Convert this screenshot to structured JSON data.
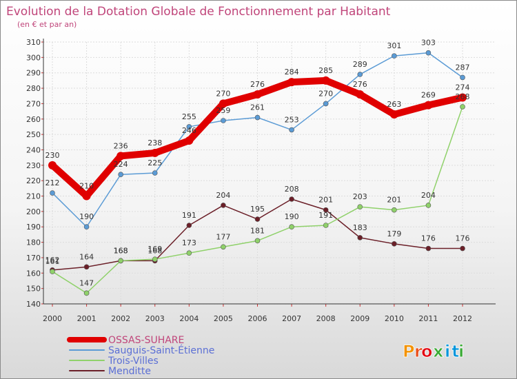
{
  "chart_data": {
    "type": "line",
    "title": "Evolution de la Dotation Globale de Fonctionnement par Habitant",
    "subtitle": "(en € et par an)",
    "categories": [
      "2000",
      "2001",
      "2002",
      "2003",
      "2004",
      "2005",
      "2006",
      "2007",
      "2008",
      "2009",
      "2010",
      "2011",
      "2012"
    ],
    "ylim": [
      140,
      310
    ],
    "yticks": [
      140,
      150,
      160,
      170,
      180,
      190,
      200,
      210,
      220,
      230,
      240,
      250,
      260,
      270,
      280,
      290,
      300,
      310
    ],
    "grid": true,
    "legend_position": "bottom-left",
    "series": [
      {
        "name": "OSSAS-SUHARE",
        "color": "#e00000",
        "values": [
          230,
          210,
          236,
          238,
          246,
          270,
          276,
          284,
          285,
          276,
          263,
          269,
          274
        ],
        "labels": [
          "230",
          "210",
          "236",
          "238",
          "246",
          "270",
          "276",
          "284",
          "285",
          "276",
          "263",
          "269",
          "274"
        ]
      },
      {
        "name": "Sauguis-Saint-Étienne",
        "color": "#5b9bd5",
        "values": [
          212,
          190,
          224,
          225,
          255,
          259,
          261,
          253,
          270,
          289,
          301,
          303,
          287
        ],
        "labels": [
          "212",
          "190",
          "224",
          "225",
          "255",
          "259",
          "261",
          "253",
          "270",
          "289",
          "301",
          "303",
          "287"
        ]
      },
      {
        "name": "Trois-Villes",
        "color": "#8fd16a",
        "values": [
          161,
          147,
          168,
          169,
          173,
          177,
          181,
          190,
          191,
          203,
          201,
          204,
          268
        ],
        "labels": [
          "161",
          "147",
          "168",
          "169",
          "173",
          "177",
          "181",
          "190",
          "191",
          "203",
          "201",
          "204",
          "268"
        ]
      },
      {
        "name": "Menditte",
        "color": "#6b1f28",
        "values": [
          162,
          164,
          168,
          168,
          191,
          204,
          195,
          208,
          201,
          183,
          179,
          176,
          176
        ],
        "labels": [
          "162",
          "164",
          "168",
          "168",
          "191",
          "204",
          "195",
          "208",
          "201",
          "183",
          "179",
          "176",
          "176"
        ]
      }
    ]
  },
  "logo": {
    "text": "Proxiti",
    "letters": [
      "P",
      "r",
      "o",
      "x",
      "i",
      "t",
      "i"
    ],
    "colors": [
      "#f39200",
      "#e94e1b",
      "#e30613",
      "#3aaa35",
      "#0095db",
      "#0095db",
      "#3aaa35"
    ]
  }
}
